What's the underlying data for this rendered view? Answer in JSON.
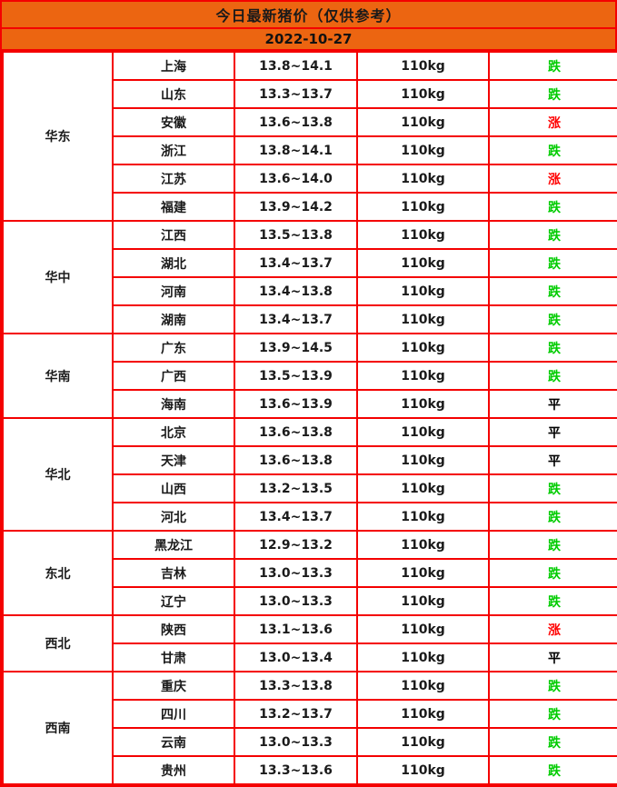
{
  "colors": {
    "header_bg": "#ec6511",
    "border_red": "#f40000",
    "trend_down": "#00cc00",
    "trend_up": "#ff0000",
    "trend_flat": "#000000"
  },
  "chart_data": {
    "type": "table",
    "title": "今日最新猪价（仅供参考）",
    "date": "2022-10-27",
    "unit_note": "110kg",
    "regions": [
      {
        "name": "华东",
        "rows": [
          {
            "province": "上海",
            "price": "13.8~14.1",
            "weight": "110kg",
            "trend": "跌",
            "direction": "down"
          },
          {
            "province": "山东",
            "price": "13.3~13.7",
            "weight": "110kg",
            "trend": "跌",
            "direction": "down"
          },
          {
            "province": "安徽",
            "price": "13.6~13.8",
            "weight": "110kg",
            "trend": "涨",
            "direction": "up"
          },
          {
            "province": "浙江",
            "price": "13.8~14.1",
            "weight": "110kg",
            "trend": "跌",
            "direction": "down"
          },
          {
            "province": "江苏",
            "price": "13.6~14.0",
            "weight": "110kg",
            "trend": "涨",
            "direction": "up"
          },
          {
            "province": "福建",
            "price": "13.9~14.2",
            "weight": "110kg",
            "trend": "跌",
            "direction": "down"
          }
        ]
      },
      {
        "name": "华中",
        "rows": [
          {
            "province": "江西",
            "price": "13.5~13.8",
            "weight": "110kg",
            "trend": "跌",
            "direction": "down"
          },
          {
            "province": "湖北",
            "price": "13.4~13.7",
            "weight": "110kg",
            "trend": "跌",
            "direction": "down"
          },
          {
            "province": "河南",
            "price": "13.4~13.8",
            "weight": "110kg",
            "trend": "跌",
            "direction": "down"
          },
          {
            "province": "湖南",
            "price": "13.4~13.7",
            "weight": "110kg",
            "trend": "跌",
            "direction": "down"
          }
        ]
      },
      {
        "name": "华南",
        "rows": [
          {
            "province": "广东",
            "price": "13.9~14.5",
            "weight": "110kg",
            "trend": "跌",
            "direction": "down"
          },
          {
            "province": "广西",
            "price": "13.5~13.9",
            "weight": "110kg",
            "trend": "跌",
            "direction": "down"
          },
          {
            "province": "海南",
            "price": "13.6~13.9",
            "weight": "110kg",
            "trend": "平",
            "direction": "flat"
          }
        ]
      },
      {
        "name": "华北",
        "rows": [
          {
            "province": "北京",
            "price": "13.6~13.8",
            "weight": "110kg",
            "trend": "平",
            "direction": "flat"
          },
          {
            "province": "天津",
            "price": "13.6~13.8",
            "weight": "110kg",
            "trend": "平",
            "direction": "flat"
          },
          {
            "province": "山西",
            "price": "13.2~13.5",
            "weight": "110kg",
            "trend": "跌",
            "direction": "down"
          },
          {
            "province": "河北",
            "price": "13.4~13.7",
            "weight": "110kg",
            "trend": "跌",
            "direction": "down"
          }
        ]
      },
      {
        "name": "东北",
        "rows": [
          {
            "province": "黑龙江",
            "price": "12.9~13.2",
            "weight": "110kg",
            "trend": "跌",
            "direction": "down"
          },
          {
            "province": "吉林",
            "price": "13.0~13.3",
            "weight": "110kg",
            "trend": "跌",
            "direction": "down"
          },
          {
            "province": "辽宁",
            "price": "13.0~13.3",
            "weight": "110kg",
            "trend": "跌",
            "direction": "down"
          }
        ]
      },
      {
        "name": "西北",
        "rows": [
          {
            "province": "陕西",
            "price": "13.1~13.6",
            "weight": "110kg",
            "trend": "涨",
            "direction": "up"
          },
          {
            "province": "甘肃",
            "price": "13.0~13.4",
            "weight": "110kg",
            "trend": "平",
            "direction": "flat"
          }
        ]
      },
      {
        "name": "西南",
        "rows": [
          {
            "province": "重庆",
            "price": "13.3~13.8",
            "weight": "110kg",
            "trend": "跌",
            "direction": "down"
          },
          {
            "province": "四川",
            "price": "13.2~13.7",
            "weight": "110kg",
            "trend": "跌",
            "direction": "down"
          },
          {
            "province": "云南",
            "price": "13.0~13.3",
            "weight": "110kg",
            "trend": "跌",
            "direction": "down"
          },
          {
            "province": "贵州",
            "price": "13.3~13.6",
            "weight": "110kg",
            "trend": "跌",
            "direction": "down"
          }
        ]
      }
    ]
  }
}
